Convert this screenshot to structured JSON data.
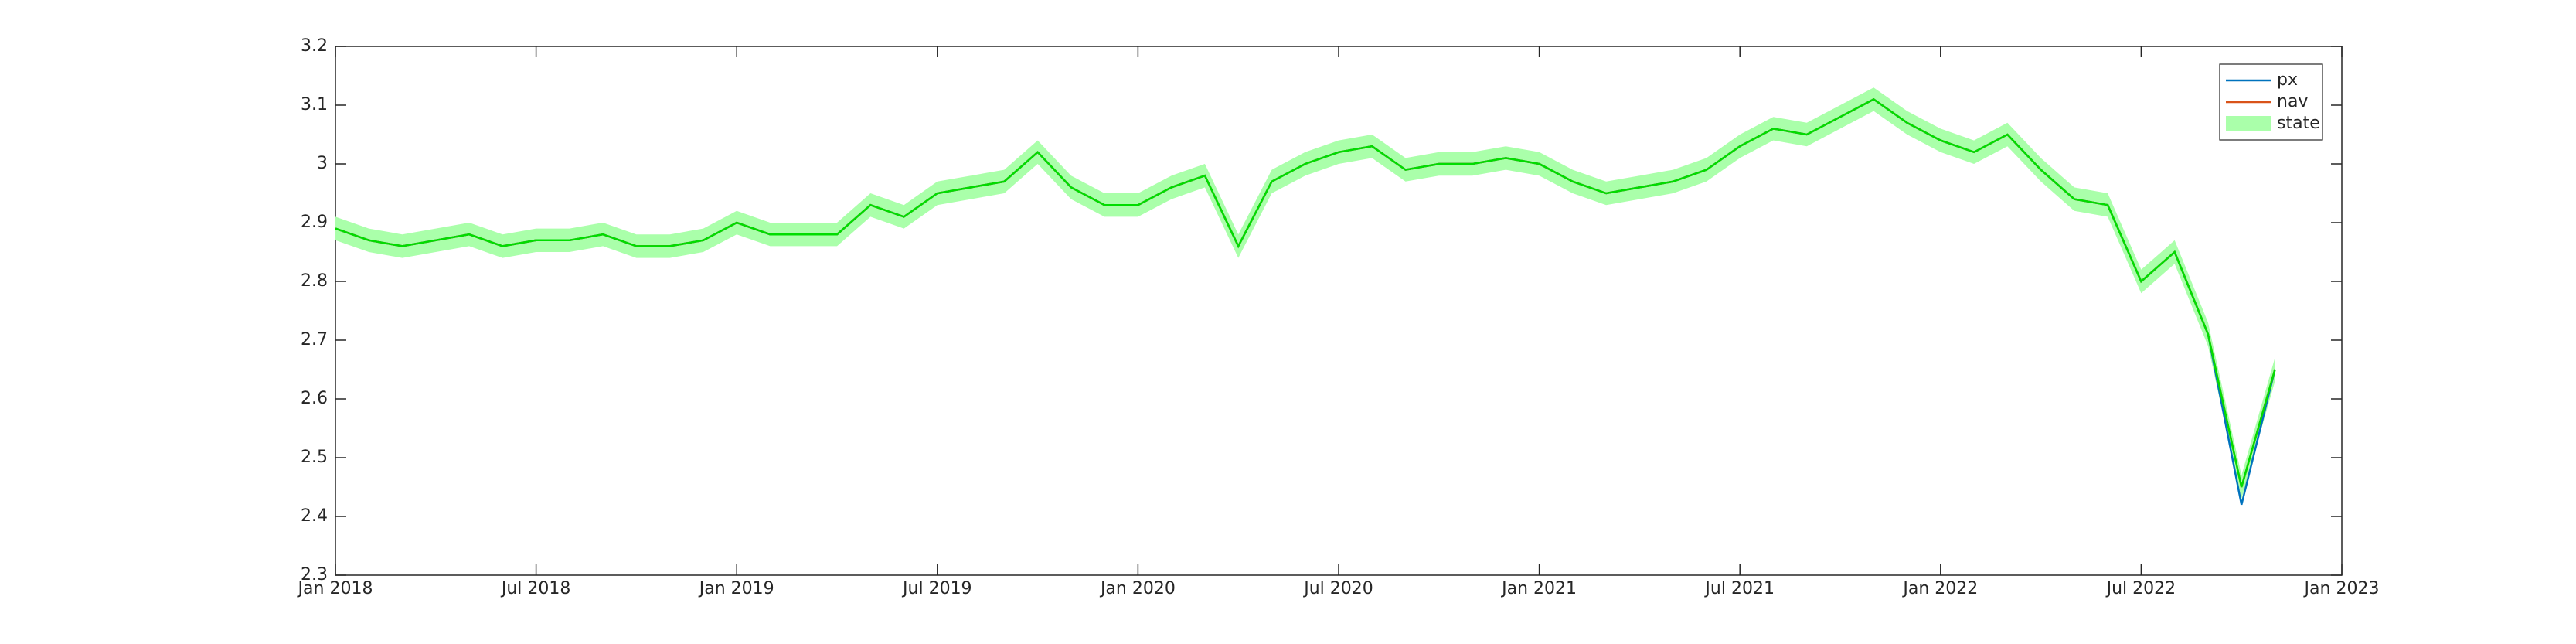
{
  "chart_data": {
    "type": "line",
    "x": [
      "2018-01",
      "2018-02",
      "2018-03",
      "2018-04",
      "2018-05",
      "2018-06",
      "2018-07",
      "2018-08",
      "2018-09",
      "2018-10",
      "2018-11",
      "2018-12",
      "2019-01",
      "2019-02",
      "2019-03",
      "2019-04",
      "2019-05",
      "2019-06",
      "2019-07",
      "2019-08",
      "2019-09",
      "2019-10",
      "2019-11",
      "2019-12",
      "2020-01",
      "2020-02",
      "2020-03",
      "2020-04",
      "2020-05",
      "2020-06",
      "2020-07",
      "2020-08",
      "2020-09",
      "2020-10",
      "2020-11",
      "2020-12",
      "2021-01",
      "2021-02",
      "2021-03",
      "2021-04",
      "2021-05",
      "2021-06",
      "2021-07",
      "2021-08",
      "2021-09",
      "2021-10",
      "2021-11",
      "2021-12",
      "2022-01",
      "2022-02",
      "2022-03",
      "2022-04",
      "2022-05",
      "2022-06",
      "2022-07",
      "2022-08",
      "2022-09",
      "2022-10",
      "2022-11"
    ],
    "series": [
      {
        "name": "px",
        "color": "#0072bd",
        "values": [
          2.89,
          2.87,
          2.86,
          2.87,
          2.88,
          2.86,
          2.87,
          2.87,
          2.88,
          2.86,
          2.86,
          2.87,
          2.9,
          2.88,
          2.88,
          2.88,
          2.93,
          2.91,
          2.95,
          2.96,
          2.97,
          3.02,
          2.96,
          2.93,
          2.93,
          2.96,
          2.98,
          2.86,
          2.97,
          3,
          3.02,
          3.03,
          2.99,
          3,
          3,
          3.01,
          3,
          2.97,
          2.95,
          2.96,
          2.97,
          2.99,
          3.03,
          3.06,
          3.05,
          3.08,
          3.11,
          3.07,
          3.04,
          3.02,
          3.05,
          2.99,
          2.94,
          2.93,
          2.8,
          2.85,
          2.71,
          2.42,
          2.65
        ]
      },
      {
        "name": "nav",
        "color": "#d95319",
        "values": [
          2.89,
          2.87,
          2.86,
          2.87,
          2.88,
          2.86,
          2.87,
          2.87,
          2.88,
          2.86,
          2.86,
          2.87,
          2.9,
          2.88,
          2.88,
          2.88,
          2.93,
          2.91,
          2.95,
          2.96,
          2.97,
          3.02,
          2.96,
          2.93,
          2.93,
          2.96,
          2.98,
          2.86,
          2.97,
          3,
          3.02,
          3.03,
          2.99,
          3,
          3,
          3.01,
          3,
          2.97,
          2.95,
          2.96,
          2.97,
          2.99,
          3.03,
          3.06,
          3.05,
          3.08,
          3.11,
          3.07,
          3.04,
          3.02,
          3.05,
          2.99,
          2.94,
          2.93,
          2.8,
          2.85,
          2.71,
          2.45,
          2.65
        ]
      },
      {
        "name": "state",
        "color": "#00dd00",
        "band_color": "#aaffaa",
        "values": [
          2.89,
          2.87,
          2.86,
          2.87,
          2.88,
          2.86,
          2.87,
          2.87,
          2.88,
          2.86,
          2.86,
          2.87,
          2.9,
          2.88,
          2.88,
          2.88,
          2.93,
          2.91,
          2.95,
          2.96,
          2.97,
          3.02,
          2.96,
          2.93,
          2.93,
          2.96,
          2.98,
          2.86,
          2.97,
          3,
          3.02,
          3.03,
          2.99,
          3,
          3,
          3.01,
          3,
          2.97,
          2.95,
          2.96,
          2.97,
          2.99,
          3.03,
          3.06,
          3.05,
          3.08,
          3.11,
          3.07,
          3.04,
          3.02,
          3.05,
          2.99,
          2.94,
          2.93,
          2.8,
          2.85,
          2.71,
          2.45,
          2.65
        ],
        "upper": [
          2.91,
          2.89,
          2.88,
          2.89,
          2.9,
          2.88,
          2.89,
          2.89,
          2.9,
          2.88,
          2.88,
          2.89,
          2.92,
          2.9,
          2.9,
          2.9,
          2.95,
          2.93,
          2.97,
          2.98,
          2.99,
          3.04,
          2.98,
          2.95,
          2.95,
          2.98,
          3,
          2.88,
          2.99,
          3.02,
          3.04,
          3.05,
          3.01,
          3.02,
          3.02,
          3.03,
          3.02,
          2.99,
          2.97,
          2.98,
          2.99,
          3.01,
          3.05,
          3.08,
          3.07,
          3.1,
          3.13,
          3.09,
          3.06,
          3.04,
          3.07,
          3.01,
          2.96,
          2.95,
          2.82,
          2.87,
          2.73,
          2.47,
          2.67
        ],
        "lower": [
          2.87,
          2.85,
          2.84,
          2.85,
          2.86,
          2.84,
          2.85,
          2.85,
          2.86,
          2.84,
          2.84,
          2.85,
          2.88,
          2.86,
          2.86,
          2.86,
          2.91,
          2.89,
          2.93,
          2.94,
          2.95,
          3,
          2.94,
          2.91,
          2.91,
          2.94,
          2.96,
          2.84,
          2.95,
          2.98,
          3,
          3.01,
          2.97,
          2.98,
          2.98,
          2.99,
          2.98,
          2.95,
          2.93,
          2.94,
          2.95,
          2.97,
          3.01,
          3.04,
          3.03,
          3.06,
          3.09,
          3.05,
          3.02,
          3,
          3.03,
          2.97,
          2.92,
          2.91,
          2.78,
          2.83,
          2.69,
          2.43,
          2.63
        ]
      }
    ],
    "xlim": [
      "2018-01",
      "2023-01"
    ],
    "xticks": [
      {
        "value": "2018-01",
        "label": "Jan 2018"
      },
      {
        "value": "2018-07",
        "label": "Jul 2018"
      },
      {
        "value": "2019-01",
        "label": "Jan 2019"
      },
      {
        "value": "2019-07",
        "label": "Jul 2019"
      },
      {
        "value": "2020-01",
        "label": "Jan 2020"
      },
      {
        "value": "2020-07",
        "label": "Jul 2020"
      },
      {
        "value": "2021-01",
        "label": "Jan 2021"
      },
      {
        "value": "2021-07",
        "label": "Jul 2021"
      },
      {
        "value": "2022-01",
        "label": "Jan 2022"
      },
      {
        "value": "2022-07",
        "label": "Jul 2022"
      },
      {
        "value": "2023-01",
        "label": "Jan 2023"
      }
    ],
    "ylim": [
      2.3,
      3.2
    ],
    "yticks": [
      2.3,
      2.4,
      2.5,
      2.6,
      2.7,
      2.8,
      2.9,
      3,
      3.1,
      3.2
    ],
    "legend": "upper right",
    "grid": false
  }
}
